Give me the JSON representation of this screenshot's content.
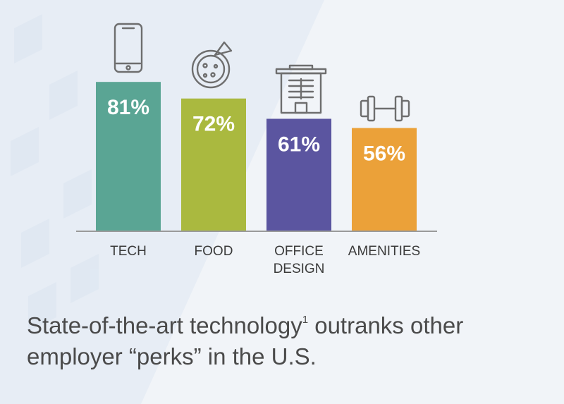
{
  "chart_data": {
    "type": "bar",
    "categories": [
      "TECH",
      "FOOD",
      "OFFICE DESIGN",
      "AMENITIES"
    ],
    "category_lines": [
      [
        "TECH"
      ],
      [
        "FOOD"
      ],
      [
        "OFFICE",
        "DESIGN"
      ],
      [
        "AMENITIES"
      ]
    ],
    "values": [
      81,
      72,
      61,
      56
    ],
    "value_labels": [
      "81%",
      "72%",
      "61%",
      "56%"
    ],
    "colors": [
      "#5aa594",
      "#aab93f",
      "#5b55a0",
      "#eba139"
    ],
    "icons": [
      "smartphone-icon",
      "pizza-icon",
      "office-building-icon",
      "dumbbell-icon"
    ],
    "ylim": [
      0,
      100
    ],
    "grid": false,
    "legend": "none"
  },
  "caption": {
    "text_before": "State-of-the-art technology",
    "footnote": "1",
    "text_after": " outranks other employer “perks” in the U.S."
  }
}
